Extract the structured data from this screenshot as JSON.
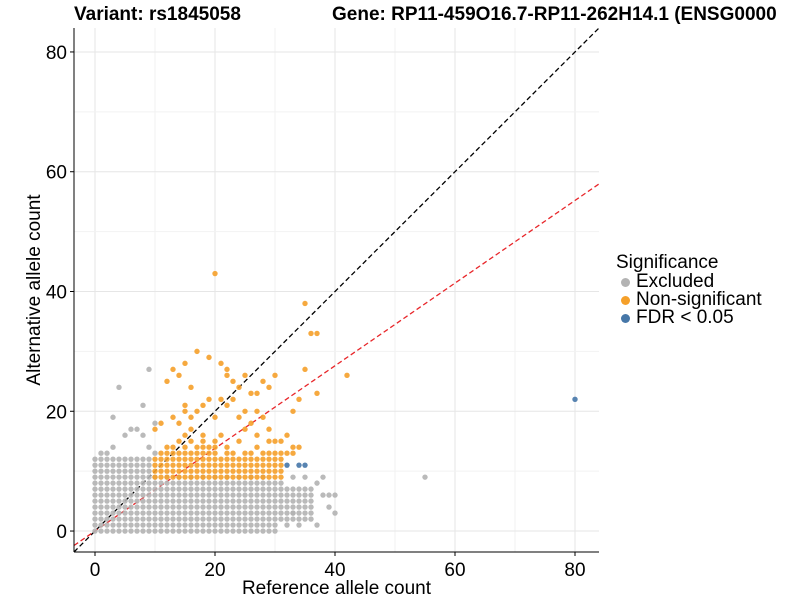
{
  "title": {
    "variant": "Variant: rs1845058",
    "gene": "Gene: RP11-459O16.7-RP11-262H14.1 (ENSG0000"
  },
  "legend": {
    "title": "Significance",
    "items": [
      {
        "label": "Excluded",
        "color": "#b3b3b3"
      },
      {
        "label": "Non-significant",
        "color": "#f5a02a"
      },
      {
        "label": "FDR < 0.05",
        "color": "#4677a8"
      }
    ]
  },
  "chart_data": {
    "type": "scatter",
    "xlabel": "Reference allele count",
    "ylabel": "Alternative allele count",
    "xlim": [
      -3.5,
      84
    ],
    "ylim": [
      -3.5,
      84
    ],
    "xticks": [
      0,
      20,
      40,
      60,
      80
    ],
    "yticks": [
      0,
      20,
      40,
      60,
      80
    ],
    "grid": true,
    "reference_lines": [
      {
        "name": "identity",
        "slope": 1,
        "intercept": 0,
        "color": "#000000",
        "style": "dashed"
      },
      {
        "name": "fit",
        "slope": 0.69,
        "intercept": 0,
        "color": "#e8262a",
        "style": "dashed"
      }
    ],
    "series": [
      {
        "name": "Excluded",
        "color": "#b3b3b3",
        "grid_ranges": [
          {
            "x": [
              0,
              10
            ],
            "y": [
              0,
              9
            ]
          },
          {
            "x": [
              0,
              9
            ],
            "y": [
              10,
              12
            ]
          },
          {
            "x": [
              11,
              30
            ],
            "y": [
              0,
              8
            ]
          },
          {
            "x": [
              31,
              36
            ],
            "y": [
              2,
              7
            ]
          }
        ],
        "points": [
          [
            1,
            13
          ],
          [
            2,
            13
          ],
          [
            3,
            14
          ],
          [
            3,
            19
          ],
          [
            4,
            24
          ],
          [
            5,
            16
          ],
          [
            6,
            17
          ],
          [
            7,
            17
          ],
          [
            8,
            16
          ],
          [
            8,
            21
          ],
          [
            9,
            27
          ],
          [
            9,
            14
          ],
          [
            10,
            18
          ],
          [
            10,
            13
          ],
          [
            12,
            9
          ],
          [
            14,
            9
          ],
          [
            16,
            9
          ],
          [
            18,
            9
          ],
          [
            20,
            9
          ],
          [
            22,
            9
          ],
          [
            24,
            9
          ],
          [
            26,
            9
          ],
          [
            28,
            9
          ],
          [
            31,
            8
          ],
          [
            33,
            9
          ],
          [
            35,
            9
          ],
          [
            37,
            8
          ],
          [
            38,
            6
          ],
          [
            38,
            9
          ],
          [
            32,
            1
          ],
          [
            33,
            3
          ],
          [
            34,
            1
          ],
          [
            37,
            1
          ],
          [
            39,
            4
          ],
          [
            39,
            6
          ],
          [
            40,
            6
          ],
          [
            40,
            3
          ],
          [
            55,
            9
          ]
        ]
      },
      {
        "name": "Non-significant",
        "color": "#f5a02a",
        "grid_ranges": [
          {
            "x": [
              10,
              31
            ],
            "y": [
              9,
              12
            ]
          }
        ],
        "points": [
          [
            11,
            13
          ],
          [
            12,
            13
          ],
          [
            12,
            14
          ],
          [
            13,
            13
          ],
          [
            13,
            14
          ],
          [
            14,
            13
          ],
          [
            14,
            15
          ],
          [
            15,
            13
          ],
          [
            15,
            14
          ],
          [
            15,
            16
          ],
          [
            16,
            13
          ],
          [
            16,
            15
          ],
          [
            16,
            17
          ],
          [
            17,
            14
          ],
          [
            17,
            13
          ],
          [
            18,
            13
          ],
          [
            18,
            14
          ],
          [
            18,
            15
          ],
          [
            18,
            16
          ],
          [
            19,
            13
          ],
          [
            19,
            14
          ],
          [
            20,
            13
          ],
          [
            20,
            14
          ],
          [
            20,
            15
          ],
          [
            21,
            16
          ],
          [
            22,
            13
          ],
          [
            22,
            14
          ],
          [
            23,
            13
          ],
          [
            24,
            15
          ],
          [
            25,
            13
          ],
          [
            26,
            13
          ],
          [
            27,
            14
          ],
          [
            28,
            13
          ],
          [
            29,
            13
          ],
          [
            30,
            13
          ],
          [
            31,
            13
          ],
          [
            32,
            13
          ],
          [
            33,
            14
          ],
          [
            33,
            13
          ],
          [
            34,
            14
          ],
          [
            10,
            17
          ],
          [
            11,
            18
          ],
          [
            13,
            19
          ],
          [
            14,
            18
          ],
          [
            15,
            21
          ],
          [
            15,
            20
          ],
          [
            16,
            19
          ],
          [
            17,
            20
          ],
          [
            18,
            21
          ],
          [
            19,
            22
          ],
          [
            20,
            19
          ],
          [
            21,
            22
          ],
          [
            22,
            21
          ],
          [
            23,
            22
          ],
          [
            24,
            19
          ],
          [
            25,
            20
          ],
          [
            26,
            18
          ],
          [
            27,
            20
          ],
          [
            28,
            19
          ],
          [
            29,
            17
          ],
          [
            12,
            25
          ],
          [
            13,
            27
          ],
          [
            14,
            26
          ],
          [
            15,
            28
          ],
          [
            16,
            24
          ],
          [
            17,
            30
          ],
          [
            19,
            29
          ],
          [
            20,
            43
          ],
          [
            21,
            28
          ],
          [
            22,
            26
          ],
          [
            22,
            27
          ],
          [
            23,
            25
          ],
          [
            24,
            24
          ],
          [
            25,
            26
          ],
          [
            26,
            23
          ],
          [
            27,
            23
          ],
          [
            28,
            25
          ],
          [
            29,
            24
          ],
          [
            30,
            26
          ],
          [
            33,
            20
          ],
          [
            34,
            22
          ],
          [
            35,
            38
          ],
          [
            35,
            27
          ],
          [
            36,
            33
          ],
          [
            37,
            33
          ],
          [
            37,
            23
          ],
          [
            42,
            26
          ],
          [
            31,
            15
          ],
          [
            32,
            16
          ],
          [
            30,
            15
          ],
          [
            29,
            15
          ],
          [
            27,
            16
          ],
          [
            25,
            17
          ]
        ]
      },
      {
        "name": "FDR < 0.05",
        "color": "#4677a8",
        "points": [
          [
            32,
            11
          ],
          [
            34,
            11
          ],
          [
            35,
            11
          ],
          [
            80,
            22
          ]
        ]
      }
    ]
  }
}
